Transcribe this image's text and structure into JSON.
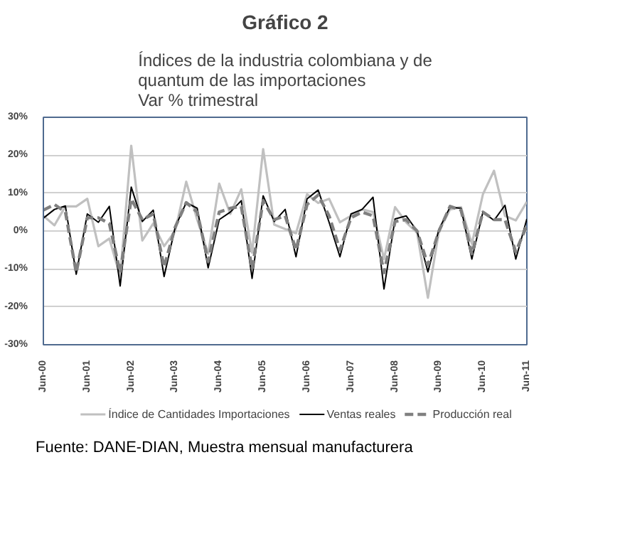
{
  "chart_data": {
    "type": "line",
    "title": "Gráfico 2",
    "subtitle": "Índices de la industria colombiana y de\nquantum de las importaciones\nVar % trimestral",
    "x": [
      "2000-06",
      "2000-09",
      "2000-12",
      "2001-03",
      "2001-06",
      "2001-09",
      "2001-12",
      "2002-03",
      "2002-06",
      "2002-09",
      "2002-12",
      "2003-03",
      "2003-06",
      "2003-09",
      "2003-12",
      "2004-03",
      "2004-06",
      "2004-09",
      "2004-12",
      "2005-03",
      "2005-06",
      "2005-09",
      "2005-12",
      "2006-03",
      "2006-06",
      "2006-09",
      "2006-12",
      "2007-03",
      "2007-06",
      "2007-09",
      "2007-12",
      "2008-03",
      "2008-06",
      "2008-09",
      "2008-12",
      "2009-03",
      "2009-06",
      "2009-09",
      "2009-12",
      "2010-03",
      "2010-06",
      "2010-09",
      "2010-12",
      "2011-03",
      "2011-06"
    ],
    "series": [
      {
        "name": "Índice de Cantidades Importaciones",
        "color": "#c0c0c0",
        "values": [
          4,
          1.5,
          6.5,
          6.5,
          8.5,
          -4,
          -2,
          -12,
          22.5,
          -2.5,
          2,
          -4,
          0,
          13,
          3,
          -6,
          12.5,
          4.5,
          11,
          -5.7,
          21.6,
          1.7,
          0.5,
          -0.6,
          9.7,
          7.4,
          8.5,
          2.3,
          4,
          5.7,
          5,
          -7.4,
          6.3,
          2.3,
          -0.5,
          -17.6,
          0,
          5.7,
          6.3,
          -3.4,
          9.7,
          15.9,
          4,
          2.8,
          7.7
        ]
      },
      {
        "name": "Ventas reales",
        "color": "#000000",
        "values": [
          3.4,
          5.7,
          6.6,
          -11.4,
          4.5,
          2.3,
          6.5,
          -14.5,
          11.6,
          2.5,
          5.5,
          -12,
          1,
          7.5,
          6,
          -9.7,
          3,
          5,
          8,
          -12.5,
          9.3,
          2.5,
          5.7,
          -6.8,
          8.5,
          10.8,
          2.3,
          -6.8,
          4.5,
          5.7,
          8.9,
          -15.3,
          3.2,
          4,
          0,
          -10.8,
          0.5,
          6.3,
          6,
          -7.4,
          5,
          2.8,
          6.8,
          -7.4,
          3.2
        ]
      },
      {
        "name": "Producción real",
        "color": "#808080",
        "line_style": "dashed",
        "values": [
          5.5,
          7,
          5,
          -11,
          3.5,
          3.5,
          2,
          -11,
          8.5,
          3,
          4.5,
          -9.5,
          1,
          7.5,
          5,
          -8,
          5,
          6,
          6.5,
          -10,
          8,
          3,
          4,
          -5,
          7,
          9.5,
          4,
          -5,
          3.5,
          5,
          4,
          -11,
          2.5,
          3,
          0,
          -9,
          0,
          6.5,
          5.5,
          -6,
          5,
          3,
          3,
          -5.5,
          1.5
        ]
      }
    ],
    "xlim": [
      "2000-06",
      "2011-06"
    ],
    "xticks": [
      {
        "value": "2000-06",
        "label": "Jun-00"
      },
      {
        "value": "2001-06",
        "label": "Jun-01"
      },
      {
        "value": "2002-06",
        "label": "Jun-02"
      },
      {
        "value": "2003-06",
        "label": "Jun-03"
      },
      {
        "value": "2004-06",
        "label": "Jun-04"
      },
      {
        "value": "2005-06",
        "label": "Jun-05"
      },
      {
        "value": "2006-06",
        "label": "Jun-06"
      },
      {
        "value": "2007-06",
        "label": "Jun-07"
      },
      {
        "value": "2008-06",
        "label": "Jun-08"
      },
      {
        "value": "2009-06",
        "label": "Jun-09"
      },
      {
        "value": "2010-06",
        "label": "Jun-10"
      },
      {
        "value": "2011-06",
        "label": "Jun-11"
      }
    ],
    "ylim": [
      -30,
      30
    ],
    "yticks": [
      {
        "value": -30,
        "label": "-30%"
      },
      {
        "value": -20,
        "label": "-20%"
      },
      {
        "value": -10,
        "label": "-10%"
      },
      {
        "value": 0,
        "label": "0%"
      },
      {
        "value": 10,
        "label": "10%"
      },
      {
        "value": 20,
        "label": "20%"
      },
      {
        "value": 30,
        "label": "30%"
      }
    ],
    "grid": "y",
    "legend": "bottom",
    "marker": "none",
    "line_style": "solid",
    "annotations": [
      "Fuente: DANE-DIAN, Muestra mensual manufacturera"
    ]
  }
}
